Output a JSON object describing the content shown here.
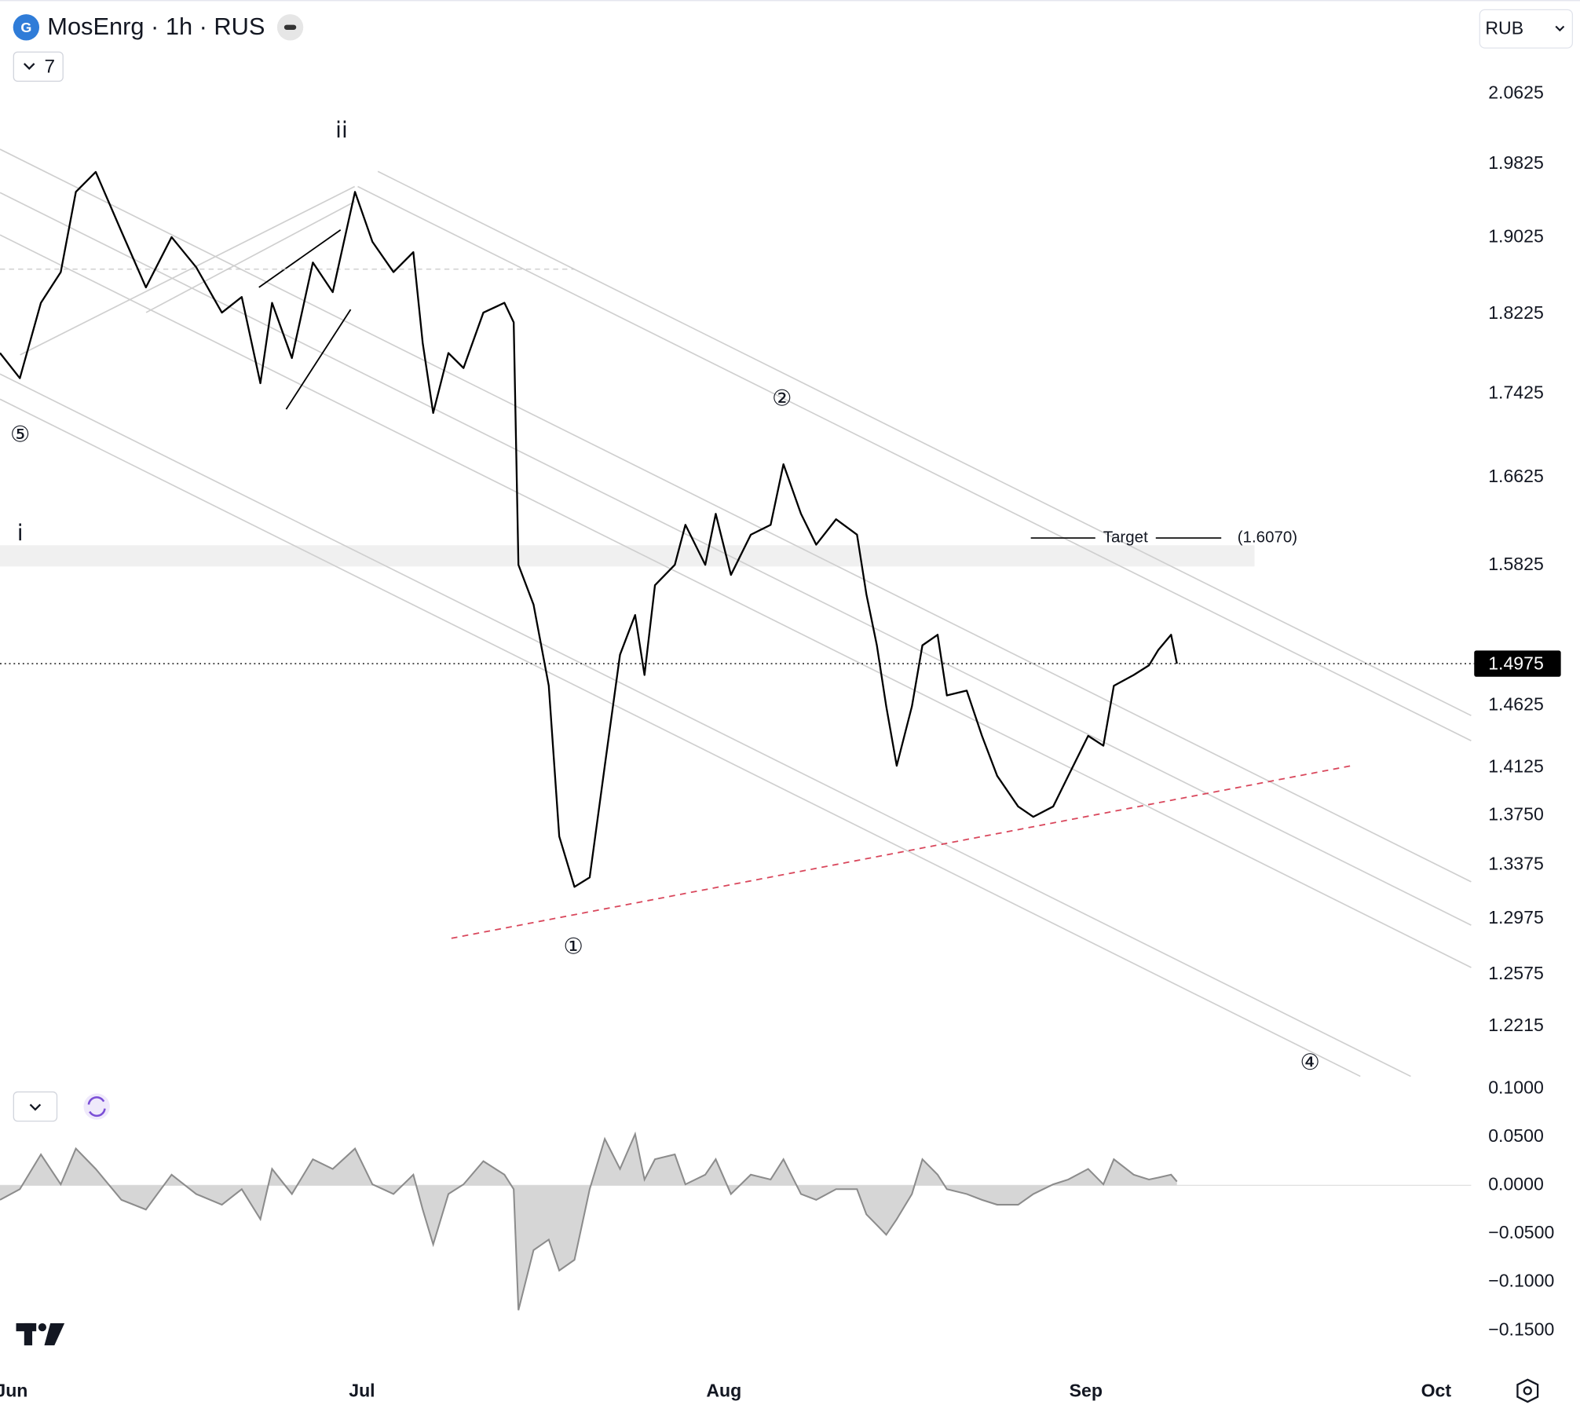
{
  "header": {
    "symbol_title": "MosEnrg · 1h · RUS",
    "indicator_count": "7",
    "currency": "RUB"
  },
  "chart_data": [
    {
      "type": "line",
      "log_scale": true,
      "color": "#000000",
      "x": [
        -1.0,
        0.7,
        2.5,
        4.2,
        5.5,
        7.2,
        9.4,
        11.5,
        13.7,
        15.8,
        18.0,
        19.7,
        21.3,
        22.3,
        24.0,
        25.8,
        27.5,
        29.4,
        30.9,
        32.7,
        34.4,
        35.2,
        36.1,
        37.4,
        38.7,
        40.4,
        42.2,
        43.0,
        43.4,
        44.7,
        46.0,
        46.9,
        48.2,
        49.5,
        50.8,
        52.1,
        53.4,
        54.2,
        55.1,
        56.8,
        57.7,
        59.4,
        60.3,
        61.6,
        63.3,
        65.0,
        66.1,
        67.6,
        68.9,
        70.6,
        72.4,
        73.2,
        74.1,
        74.9,
        75.8,
        77.1,
        78.0,
        79.3,
        80.1,
        81.8,
        83.1,
        84.4,
        86.2,
        87.5,
        89.2,
        90.5,
        92.2,
        93.5,
        94.4,
        96.1,
        97.4,
        98.2,
        99.3,
        99.8
      ],
      "values": [
        1.783,
        1.758,
        1.834,
        1.866,
        1.952,
        1.974,
        1.909,
        1.85,
        1.903,
        1.871,
        1.824,
        1.84,
        1.753,
        1.834,
        1.778,
        1.876,
        1.845,
        1.952,
        1.898,
        1.866,
        1.887,
        1.793,
        1.724,
        1.783,
        1.768,
        1.824,
        1.834,
        1.814,
        1.583,
        1.548,
        1.479,
        1.359,
        1.321,
        1.328,
        1.414,
        1.505,
        1.539,
        1.488,
        1.565,
        1.583,
        1.619,
        1.583,
        1.629,
        1.574,
        1.61,
        1.619,
        1.675,
        1.629,
        1.601,
        1.624,
        1.61,
        1.557,
        1.513,
        1.462,
        1.414,
        1.462,
        1.513,
        1.522,
        1.471,
        1.475,
        1.438,
        1.406,
        1.382,
        1.374,
        1.382,
        1.406,
        1.438,
        1.43,
        1.479,
        1.488,
        1.496,
        1.509,
        1.522,
        1.4975
      ],
      "xlim": [
        -1,
        125
      ],
      "ylim": [
        1.193,
        2.174
      ],
      "yticks": [
        2.0625,
        1.9825,
        1.9025,
        1.8225,
        1.7425,
        1.6625,
        1.5825,
        1.4625,
        1.4125,
        {
          "value": 1.375,
          "label": "1.3750"
        },
        1.3375,
        1.2975,
        1.2575,
        1.2215
      ],
      "last_price": 1.4975,
      "target": {
        "label": "Target",
        "value": 1.607,
        "value_label": "(1.6070)"
      },
      "wave_labels": [
        "ii",
        "i",
        "⑤",
        "②",
        "①",
        "④"
      ]
    },
    {
      "type": "area",
      "color": "#8c8c8c",
      "fill": "#d6d6d6",
      "x": [
        -1.0,
        0.7,
        2.5,
        4.2,
        5.5,
        7.2,
        9.4,
        11.5,
        13.7,
        15.8,
        18.0,
        19.7,
        21.3,
        22.3,
        24.0,
        25.8,
        27.5,
        29.4,
        30.9,
        32.7,
        34.4,
        35.2,
        36.1,
        37.4,
        38.7,
        40.4,
        42.2,
        43.0,
        43.4,
        44.7,
        46.0,
        46.9,
        48.2,
        49.5,
        50.8,
        52.1,
        53.4,
        54.2,
        55.1,
        56.8,
        57.7,
        59.4,
        60.3,
        61.6,
        63.3,
        65.0,
        66.1,
        67.6,
        68.9,
        70.6,
        72.4,
        73.2,
        74.1,
        74.9,
        75.8,
        77.1,
        78.0,
        79.3,
        80.1,
        81.8,
        83.1,
        84.4,
        86.2,
        87.5,
        89.2,
        90.5,
        92.2,
        93.5,
        94.4,
        96.1,
        97.4,
        98.2,
        99.3,
        99.8
      ],
      "values": [
        -0.015,
        -0.004,
        0.032,
        0.001,
        0.038,
        0.017,
        -0.015,
        -0.025,
        0.011,
        -0.009,
        -0.02,
        -0.004,
        -0.035,
        0.017,
        -0.009,
        0.027,
        0.017,
        0.038,
        0.001,
        -0.009,
        0.011,
        -0.025,
        -0.061,
        -0.009,
        0.001,
        0.025,
        0.011,
        -0.004,
        -0.129,
        -0.067,
        -0.056,
        -0.088,
        -0.077,
        -0.004,
        0.048,
        0.017,
        0.053,
        0.006,
        0.027,
        0.032,
        0.001,
        0.011,
        0.027,
        -0.009,
        0.011,
        0.006,
        0.027,
        -0.009,
        -0.015,
        -0.004,
        -0.004,
        -0.03,
        -0.041,
        -0.051,
        -0.035,
        -0.009,
        0.027,
        0.011,
        -0.004,
        -0.009,
        -0.015,
        -0.02,
        -0.02,
        -0.009,
        0.001,
        0.006,
        0.017,
        0.001,
        0.027,
        0.011,
        0.006,
        0.008,
        0.011,
        0.004
      ],
      "xlim": [
        -1,
        125
      ],
      "xticks": [
        {
          "value": 0,
          "label": "Jun"
        },
        {
          "value": 30,
          "label": "Jul"
        },
        {
          "value": 61,
          "label": "Aug"
        },
        {
          "value": 92,
          "label": "Sep"
        },
        {
          "value": 122,
          "label": "Oct"
        }
      ],
      "ylim": [
        -0.181,
        0.121
      ],
      "yticks": [
        {
          "value": 0.1,
          "label": "0.1000"
        },
        {
          "value": 0.05,
          "label": "0.0500"
        },
        {
          "value": 0,
          "label": "0.0000"
        },
        {
          "value": -0.05,
          "label": "−0.0500"
        },
        {
          "value": -0.1,
          "label": "−0.1000"
        },
        {
          "value": -0.15,
          "label": "−0.1500"
        }
      ]
    }
  ]
}
